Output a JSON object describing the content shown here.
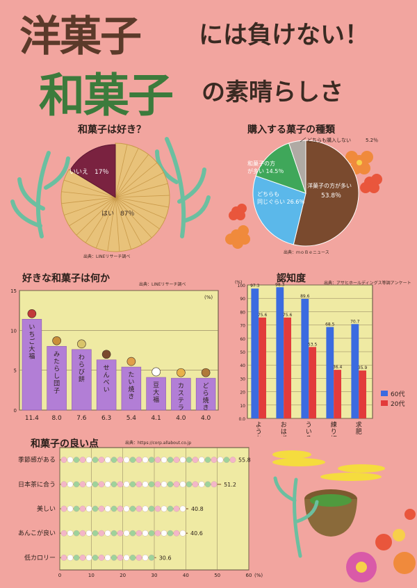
{
  "title": {
    "main": "洋菓子",
    "main_suffix": "には負けない！",
    "sub": "和菓子",
    "sub_suffix": "の素晴らしさ"
  },
  "colors": {
    "background": "#f2a59f",
    "panel": "#efeaa3",
    "wagashi_pie": "#e8c27a",
    "red_bean": "#7a2240",
    "blue": "#3b6be0",
    "red": "#e23b3b",
    "purple": "#b27ed6"
  },
  "chart_data": [
    {
      "type": "pie",
      "title": "和菓子は好き？",
      "source": "出典：LINEリサーチ調べ",
      "categories": [
        "はい",
        "いいえ"
      ],
      "labels": [
        "はい　87％",
        "いいえ　17％"
      ],
      "values": [
        87,
        17
      ],
      "colors": [
        "#e8c27a",
        "#7a2240"
      ]
    },
    {
      "type": "pie",
      "title": "購入する菓子の種類",
      "source": "出典：ｍｏＢｅニュース",
      "categories": [
        "洋菓子の方が多い",
        "どちらも同じぐらい",
        "和菓子の方が多い",
        "どちらも購入しない"
      ],
      "labels": [
        "洋菓子の方が多い",
        "どちらも",
        "和菓子の方",
        "どちらも購入しない"
      ],
      "labels2": [
        "",
        "同じぐらい",
        "が多い",
        ""
      ],
      "value_labels": [
        "53.8％",
        "26.6％",
        "14.5％",
        "5.2％"
      ],
      "values": [
        53.8,
        26.6,
        14.5,
        5.2
      ],
      "colors": [
        "#7a4a2e",
        "#5bb8ea",
        "#3fa75a",
        "#b0aaa4"
      ]
    },
    {
      "type": "bar",
      "title": "好きな和菓子は何か",
      "source": "出典：LINEリサーチ調べ",
      "unit": "(%)",
      "categories": [
        "いちご大福",
        "みたらし団子",
        "わらび餅",
        "せんべい",
        "たい焼き",
        "豆大福",
        "カステラ",
        "どら焼き"
      ],
      "values": [
        11.4,
        8.0,
        7.6,
        6.3,
        5.4,
        4.1,
        4.0,
        4.0
      ],
      "value_labels": [
        "11.4",
        "8.0",
        "7.6",
        "6.3",
        "5.4",
        "4.1",
        "4.0",
        "4.0"
      ],
      "yticks": [
        "15",
        "10",
        "5",
        "0"
      ],
      "ylim": [
        0,
        15
      ]
    },
    {
      "type": "bar",
      "title": "認知度",
      "source": "出典：アサヒホールディングス等調アンケート",
      "unit": "(%)",
      "categories": [
        "ようかん",
        "おはぎ",
        "ういろう",
        "練り切り",
        "求肥"
      ],
      "series": [
        {
          "name": "60代",
          "values": [
            97.3,
            98.3,
            89.6,
            68.5,
            70.7
          ],
          "labels": [
            "97.3",
            "98.3",
            "89.6",
            "68.5",
            "70.7"
          ]
        },
        {
          "name": "20代",
          "values": [
            75.6,
            75.6,
            53.5,
            36.4,
            35.9
          ],
          "labels": [
            "75.6",
            "75.6",
            "53.5",
            "36.4",
            "35.9"
          ]
        }
      ],
      "yticks": [
        "100",
        "90",
        "80",
        "70",
        "60",
        "50",
        "40",
        "30",
        "20",
        "10",
        "0.0"
      ],
      "ylim": [
        0,
        100
      ],
      "legend": "right"
    },
    {
      "type": "bar",
      "orientation": "horizontal",
      "title": "和菓子の良い点",
      "source": "出典：https://corp.allabout.co.jp",
      "unit": "(%)",
      "categories": [
        "季節感がある",
        "日本茶に合う",
        "美しい",
        "あんこが良い",
        "低カロリー"
      ],
      "values": [
        55.8,
        51.2,
        40.8,
        40.6,
        30.6
      ],
      "value_labels": [
        "55.8",
        "51.2",
        "40.8",
        "40.6",
        "30.6"
      ],
      "xticks": [
        "0",
        "10",
        "20",
        "30",
        "40",
        "50",
        "60"
      ],
      "xlim": [
        0,
        60
      ]
    }
  ]
}
